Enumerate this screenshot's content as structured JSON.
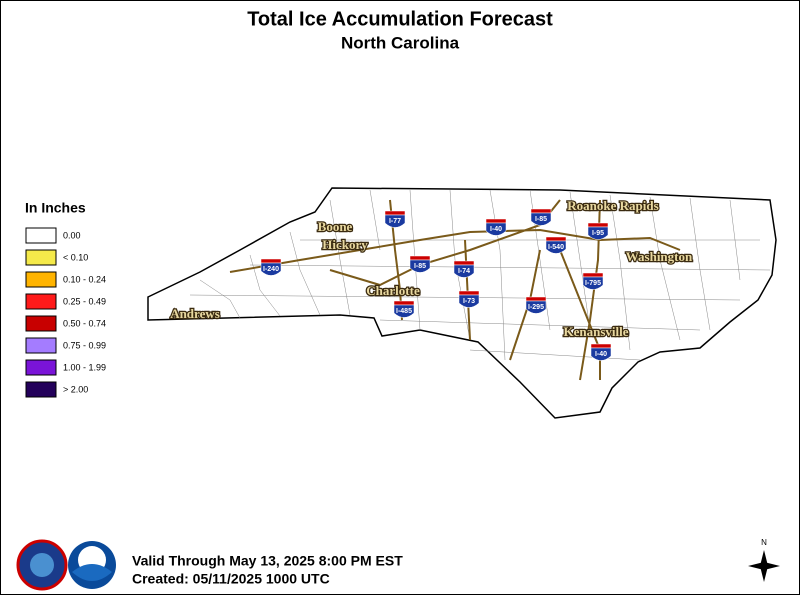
{
  "header": {
    "title": "Total Ice Accumulation Forecast",
    "subtitle": "North Carolina"
  },
  "legend": {
    "title": "In Inches",
    "items": [
      {
        "label": "0.00",
        "color": "#ffffff"
      },
      {
        "label": "< 0.10",
        "color": "#f5ea4a"
      },
      {
        "label": "0.10 - 0.24",
        "color": "#ffb400"
      },
      {
        "label": "0.25 - 0.49",
        "color": "#ff1a1a"
      },
      {
        "label": "0.50 - 0.74",
        "color": "#c80000"
      },
      {
        "label": "0.75 - 0.99",
        "color": "#a47cff"
      },
      {
        "label": "1.00 - 1.99",
        "color": "#7a14d8"
      },
      {
        "label": "> 2.00",
        "color": "#23005a"
      }
    ]
  },
  "cities": [
    "Boone",
    "Hickory",
    "Charlotte",
    "Andrews",
    "Roanoke Rapids",
    "Washington",
    "Kenansville"
  ],
  "interstates": [
    "I-240",
    "I-77",
    "I-40",
    "I-85",
    "I-95",
    "I-540",
    "I-85",
    "I-74",
    "I-795",
    "I-73",
    "I-485",
    "I-295",
    "I-40"
  ],
  "footer": {
    "valid": "Valid Through May 13, 2025 8:00 PM EST",
    "created": "Created: 05/11/2025 1000 UTC"
  },
  "north_label": "N"
}
